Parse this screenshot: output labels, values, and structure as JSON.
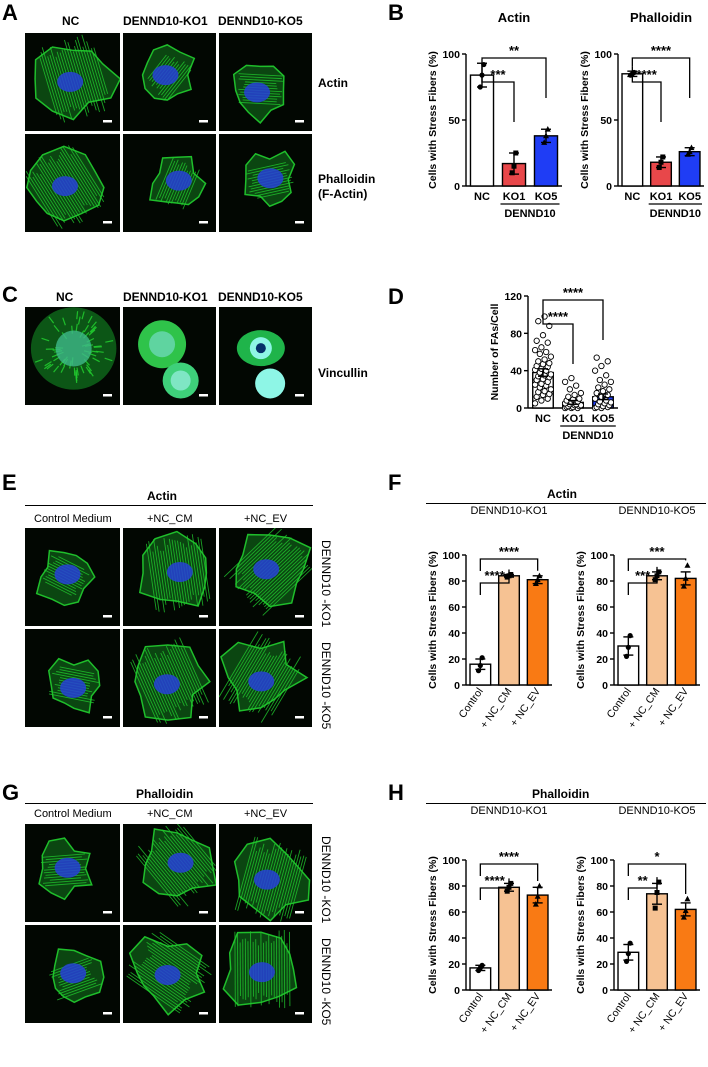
{
  "panels": {
    "A": {
      "label": "A",
      "columns": [
        "NC",
        "DENND10-KO1",
        "DENND10-KO5"
      ],
      "rows": [
        "Actin",
        "Phalloidin (F-Actin)"
      ],
      "row_lines": [
        [
          "Actin"
        ],
        [
          "Phalloidin",
          "(F-Actin)"
        ]
      ]
    },
    "B": {
      "label": "B"
    },
    "C": {
      "label": "C",
      "columns": [
        "NC",
        "DENND10-KO1",
        "DENND10-KO5"
      ],
      "row": "Vincullin"
    },
    "D": {
      "label": "D"
    },
    "E": {
      "label": "E",
      "title": "Actin",
      "columns": [
        "Control Medium",
        "+NC_CM",
        "+NC_EV"
      ],
      "rows": [
        "DENND10 -KO1",
        "DENND10 -KO5"
      ]
    },
    "F": {
      "label": "F",
      "title": "Actin"
    },
    "G": {
      "label": "G",
      "title": "Phalloidin",
      "columns": [
        "Control Medium",
        "+NC_CM",
        "+NC_EV"
      ],
      "rows": [
        "DENND10 -KO1",
        "DENND10 -KO5"
      ]
    },
    "H": {
      "label": "H",
      "title": "Phalloidin"
    }
  },
  "colors": {
    "nc": "#ffffff",
    "ko1": "#e8474a",
    "ko5": "#1f3df5",
    "cm": "#f6c293",
    "ev": "#f97a14",
    "actin_green": "#21c82e",
    "nucleus_blue": "#2741d8",
    "vinculin_cyan": "#8ef6e6"
  },
  "chart_data": [
    {
      "id": "B-actin",
      "type": "bar",
      "title": "Actin",
      "ylabel": "Cells with Stress Fibers (%)",
      "ylim": [
        0,
        100
      ],
      "yticks": [
        0,
        50,
        100
      ],
      "categories": [
        "NC",
        "KO1",
        "KO5"
      ],
      "group_label": "DENND10",
      "values": [
        84,
        17,
        38
      ],
      "errors": [
        9,
        8,
        5
      ],
      "points": [
        [
          75,
          84,
          92
        ],
        [
          10,
          15,
          25
        ],
        [
          33,
          38,
          43
        ]
      ],
      "markers": [
        "circle",
        "square",
        "triangle"
      ],
      "fills": [
        "nc",
        "ko1",
        "ko5"
      ],
      "significance": [
        {
          "from": 0,
          "to": 1,
          "label": "***"
        },
        {
          "from": 0,
          "to": 2,
          "label": "**"
        }
      ]
    },
    {
      "id": "B-phalloidin",
      "type": "bar",
      "title": "Phalloidin",
      "ylabel": "Cells with Stress Fibers (%)",
      "ylim": [
        0,
        100
      ],
      "yticks": [
        0,
        50,
        100
      ],
      "categories": [
        "NC",
        "KO1",
        "KO5"
      ],
      "group_label": "DENND10",
      "values": [
        85,
        18,
        26
      ],
      "errors": [
        2,
        4,
        3
      ],
      "points": [
        [
          84,
          85,
          86
        ],
        [
          14,
          18,
          22
        ],
        [
          24,
          26,
          29
        ]
      ],
      "markers": [
        "circle",
        "square",
        "triangle"
      ],
      "fills": [
        "nc",
        "ko1",
        "ko5"
      ],
      "significance": [
        {
          "from": 0,
          "to": 1,
          "label": "****"
        },
        {
          "from": 0,
          "to": 2,
          "label": "****"
        }
      ]
    },
    {
      "id": "D",
      "type": "scatter",
      "title": "",
      "ylabel": "Number of FAs/Cell",
      "ylim": [
        0,
        120
      ],
      "yticks": [
        0,
        40,
        80,
        120
      ],
      "categories": [
        "NC",
        "KO1",
        "KO5"
      ],
      "group_label": "DENND10",
      "values": [
        38,
        6,
        12
      ],
      "errors": [
        4,
        2,
        3
      ],
      "points": [
        [
          5,
          8,
          10,
          12,
          14,
          15,
          17,
          18,
          20,
          22,
          24,
          25,
          26,
          28,
          30,
          31,
          33,
          34,
          35,
          36,
          38,
          40,
          41,
          42,
          44,
          45,
          47,
          48,
          50,
          52,
          55,
          58,
          60,
          62,
          65,
          70,
          72,
          78,
          88,
          93,
          98
        ],
        [
          0,
          0,
          0,
          1,
          1,
          2,
          2,
          3,
          3,
          4,
          4,
          5,
          6,
          7,
          8,
          9,
          10,
          12,
          14,
          16,
          20,
          24,
          28,
          32
        ],
        [
          0,
          0,
          1,
          1,
          2,
          3,
          4,
          5,
          6,
          7,
          8,
          10,
          12,
          14,
          16,
          18,
          20,
          22,
          25,
          28,
          30,
          35,
          40,
          45,
          50,
          54
        ]
      ],
      "fills": [
        "nc",
        "ko1",
        "ko5"
      ],
      "significance": [
        {
          "from": 0,
          "to": 1,
          "label": "****"
        },
        {
          "from": 0,
          "to": 2,
          "label": "****"
        }
      ]
    },
    {
      "id": "F-KO1",
      "type": "bar",
      "title": "DENND10-KO1",
      "ylabel": "Cells with Stress Fibers (%)",
      "ylim": [
        0,
        100
      ],
      "yticks": [
        0,
        20,
        40,
        60,
        80,
        100
      ],
      "categories": [
        "Control",
        "+ NC_CM",
        "+ NC_EV"
      ],
      "values": [
        16,
        84,
        81
      ],
      "errors": [
        4,
        1,
        3
      ],
      "points": [
        [
          11,
          15,
          21
        ],
        [
          83,
          84,
          85
        ],
        [
          78,
          81,
          84
        ]
      ],
      "markers": [
        "circle",
        "square",
        "triangle"
      ],
      "fills": [
        "nc",
        "cm",
        "ev"
      ],
      "significance": [
        {
          "from": 0,
          "to": 1,
          "label": "****"
        },
        {
          "from": 0,
          "to": 2,
          "label": "****"
        }
      ]
    },
    {
      "id": "F-KO5",
      "type": "bar",
      "title": "DENND10-KO5",
      "ylabel": "Cells with Stress Fibers (%)",
      "ylim": [
        0,
        100
      ],
      "yticks": [
        0,
        20,
        40,
        60,
        80,
        100
      ],
      "categories": [
        "Control",
        "+ NC_CM",
        "+ NC_EV"
      ],
      "values": [
        30,
        84,
        82
      ],
      "errors": [
        7,
        3,
        5
      ],
      "points": [
        [
          22,
          29,
          38
        ],
        [
          81,
          84,
          87
        ],
        [
          76,
          82,
          92
        ]
      ],
      "markers": [
        "circle",
        "square",
        "triangle"
      ],
      "fills": [
        "nc",
        "cm",
        "ev"
      ],
      "significance": [
        {
          "from": 0,
          "to": 1,
          "label": "***"
        },
        {
          "from": 0,
          "to": 2,
          "label": "***"
        }
      ]
    },
    {
      "id": "H-KO1",
      "type": "bar",
      "title": "DENND10-KO1",
      "ylabel": "Cells with Stress Fibers (%)",
      "ylim": [
        0,
        100
      ],
      "yticks": [
        0,
        20,
        40,
        60,
        80,
        100
      ],
      "categories": [
        "Control",
        "+ NC_CM",
        "+ NC_EV"
      ],
      "values": [
        17,
        79,
        73
      ],
      "errors": [
        2,
        3,
        6
      ],
      "points": [
        [
          15,
          17,
          19
        ],
        [
          76,
          79,
          82
        ],
        [
          66,
          72,
          80
        ]
      ],
      "markers": [
        "circle",
        "square",
        "triangle"
      ],
      "fills": [
        "nc",
        "cm",
        "ev"
      ],
      "significance": [
        {
          "from": 0,
          "to": 1,
          "label": "****"
        },
        {
          "from": 0,
          "to": 2,
          "label": "****"
        }
      ]
    },
    {
      "id": "H-KO5",
      "type": "bar",
      "title": "DENND10-KO5",
      "ylabel": "Cells with Stress Fibers (%)",
      "ylim": [
        0,
        100
      ],
      "yticks": [
        0,
        20,
        40,
        60,
        80,
        100
      ],
      "categories": [
        "Control",
        "+ NC_CM",
        "+ NC_EV"
      ],
      "values": [
        29,
        74,
        62
      ],
      "errors": [
        6,
        8,
        5
      ],
      "points": [
        [
          22,
          28,
          36
        ],
        [
          63,
          75,
          83
        ],
        [
          56,
          61,
          70
        ]
      ],
      "markers": [
        "circle",
        "square",
        "triangle"
      ],
      "fills": [
        "nc",
        "cm",
        "ev"
      ],
      "significance": [
        {
          "from": 0,
          "to": 1,
          "label": "**"
        },
        {
          "from": 0,
          "to": 2,
          "label": "*"
        }
      ]
    }
  ]
}
